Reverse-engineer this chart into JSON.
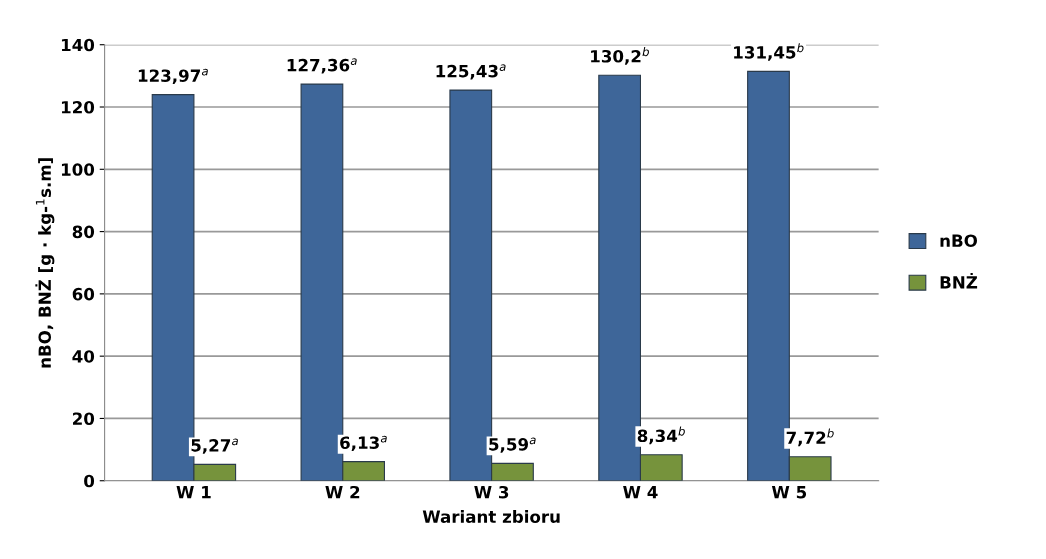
{
  "chart_data": {
    "type": "bar",
    "xlabel": "Wariant zbioru",
    "ylabel": "nBO, BNŻ [g · kg-$^{1}$s.m]",
    "categories": [
      "W 1",
      "W 2",
      "W 3",
      "W 4",
      "W 5"
    ],
    "series": [
      {
        "name": "nBO",
        "color": "#3e6699",
        "values": [
          123.97,
          127.36,
          125.43,
          130.2,
          131.45
        ],
        "value_labels": [
          "123,97$^{a}$",
          "127,36$^{a}$",
          "125,43$^{a}$",
          "130,2$^{b}$",
          "131,45$^{b}$"
        ]
      },
      {
        "name": "BNŻ",
        "color": "#76933c",
        "values": [
          5.27,
          6.13,
          5.59,
          8.34,
          7.72
        ],
        "value_labels": [
          "5,27$^{a}$",
          "6,13$^{a}$",
          "5,59$^{a}$",
          "8,34$^{b}$",
          "7,72$^{b}$"
        ]
      }
    ],
    "ylim": [
      0,
      140
    ],
    "yticks": [
      0,
      20,
      40,
      60,
      80,
      100,
      120,
      140
    ],
    "grid": "y",
    "legend": "right"
  }
}
